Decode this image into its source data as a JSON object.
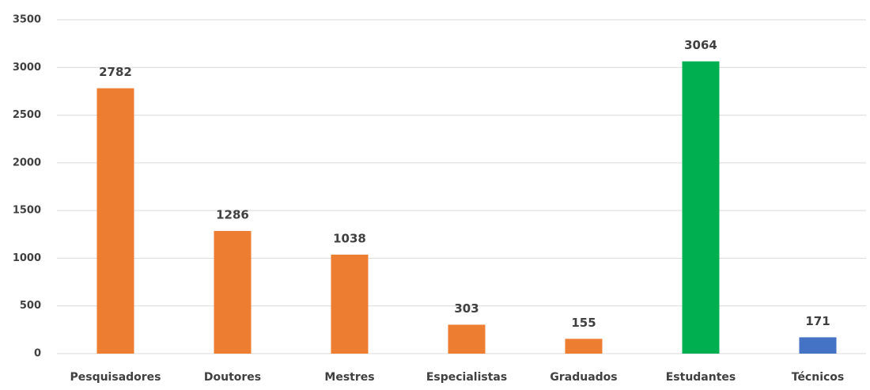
{
  "chart_data": {
    "type": "bar",
    "categories": [
      "Pesquisadores",
      "Doutores",
      "Mestres",
      "Especialistas",
      "Graduados",
      "Estudantes",
      "Técnicos"
    ],
    "values": [
      2782,
      1286,
      1038,
      303,
      155,
      3064,
      171
    ],
    "colors": [
      "#ed7d31",
      "#ed7d31",
      "#ed7d31",
      "#ed7d31",
      "#ed7d31",
      "#00b050",
      "#4472c4"
    ],
    "ylim": [
      0,
      3500
    ],
    "yticks": [
      0,
      500,
      1000,
      1500,
      2000,
      2500,
      3000,
      3500
    ],
    "grid": true,
    "data_labels": true
  }
}
